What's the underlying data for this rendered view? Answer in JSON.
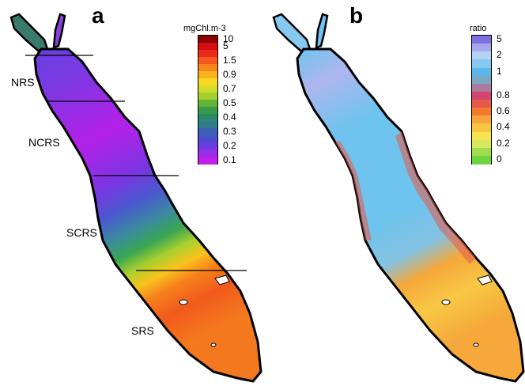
{
  "panels": {
    "a": {
      "letter": "a",
      "legend_title": "mgChl.m-3",
      "legend": [
        {
          "label": "10",
          "color": "#8b0000"
        },
        {
          "label": "5",
          "color": "#d40f12"
        },
        {
          "label": "",
          "color": "#ec2a1b"
        },
        {
          "label": "1.5",
          "color": "#f45a1d"
        },
        {
          "label": "",
          "color": "#f8861c"
        },
        {
          "label": "0.9",
          "color": "#fbb31a"
        },
        {
          "label": "",
          "color": "#f9d823"
        },
        {
          "label": "0.7",
          "color": "#d2dd29"
        },
        {
          "label": "",
          "color": "#a3cf2f"
        },
        {
          "label": "0.5",
          "color": "#66b33a"
        },
        {
          "label": "",
          "color": "#3a9a48"
        },
        {
          "label": "0.4",
          "color": "#2a8a6a"
        },
        {
          "label": "",
          "color": "#2f7d8c"
        },
        {
          "label": "0.3",
          "color": "#3c5fb0"
        },
        {
          "label": "",
          "color": "#4c4cd0"
        },
        {
          "label": "0.2",
          "color": "#6b3ce2"
        },
        {
          "label": "",
          "color": "#9a2ee6"
        },
        {
          "label": "0.1",
          "color": "#c21eec"
        }
      ],
      "regions": [
        {
          "label": "NRS"
        },
        {
          "label": "NCRS"
        },
        {
          "label": "SCRS"
        },
        {
          "label": "SRS"
        }
      ]
    },
    "b": {
      "letter": "b",
      "legend_title": "ratio",
      "legend": [
        {
          "label": "5",
          "color": "#7c6fe0"
        },
        {
          "label": "",
          "color": "#a7a6ef"
        },
        {
          "label": "2",
          "color": "#b6d2f3"
        },
        {
          "label": "",
          "color": "#86c8f0"
        },
        {
          "label": "1",
          "color": "#5ab8e8"
        },
        {
          "label": "",
          "color": "#7ca8c8"
        },
        {
          "label": "",
          "color": "#a87c9a"
        },
        {
          "label": "0.8",
          "color": "#d1456e"
        },
        {
          "label": "",
          "color": "#e65a4a"
        },
        {
          "label": "0.6",
          "color": "#f17a2e"
        },
        {
          "label": "",
          "color": "#f6a63a"
        },
        {
          "label": "0.4",
          "color": "#f8c640"
        },
        {
          "label": "",
          "color": "#f7e24f"
        },
        {
          "label": "0.2",
          "color": "#d8e85c"
        },
        {
          "label": "",
          "color": "#9fdd4f"
        },
        {
          "label": "0",
          "color": "#6fd53e"
        }
      ]
    }
  },
  "colors": {
    "water_a_north": "#b421e8",
    "water_a_mid": "#6a3fe0",
    "water_a_south": "#f25a1c",
    "water_b": "#6ec4ee",
    "water_b_north": "#aeb6ee",
    "water_b_south": "#f6a83a",
    "coast": "#000000"
  }
}
